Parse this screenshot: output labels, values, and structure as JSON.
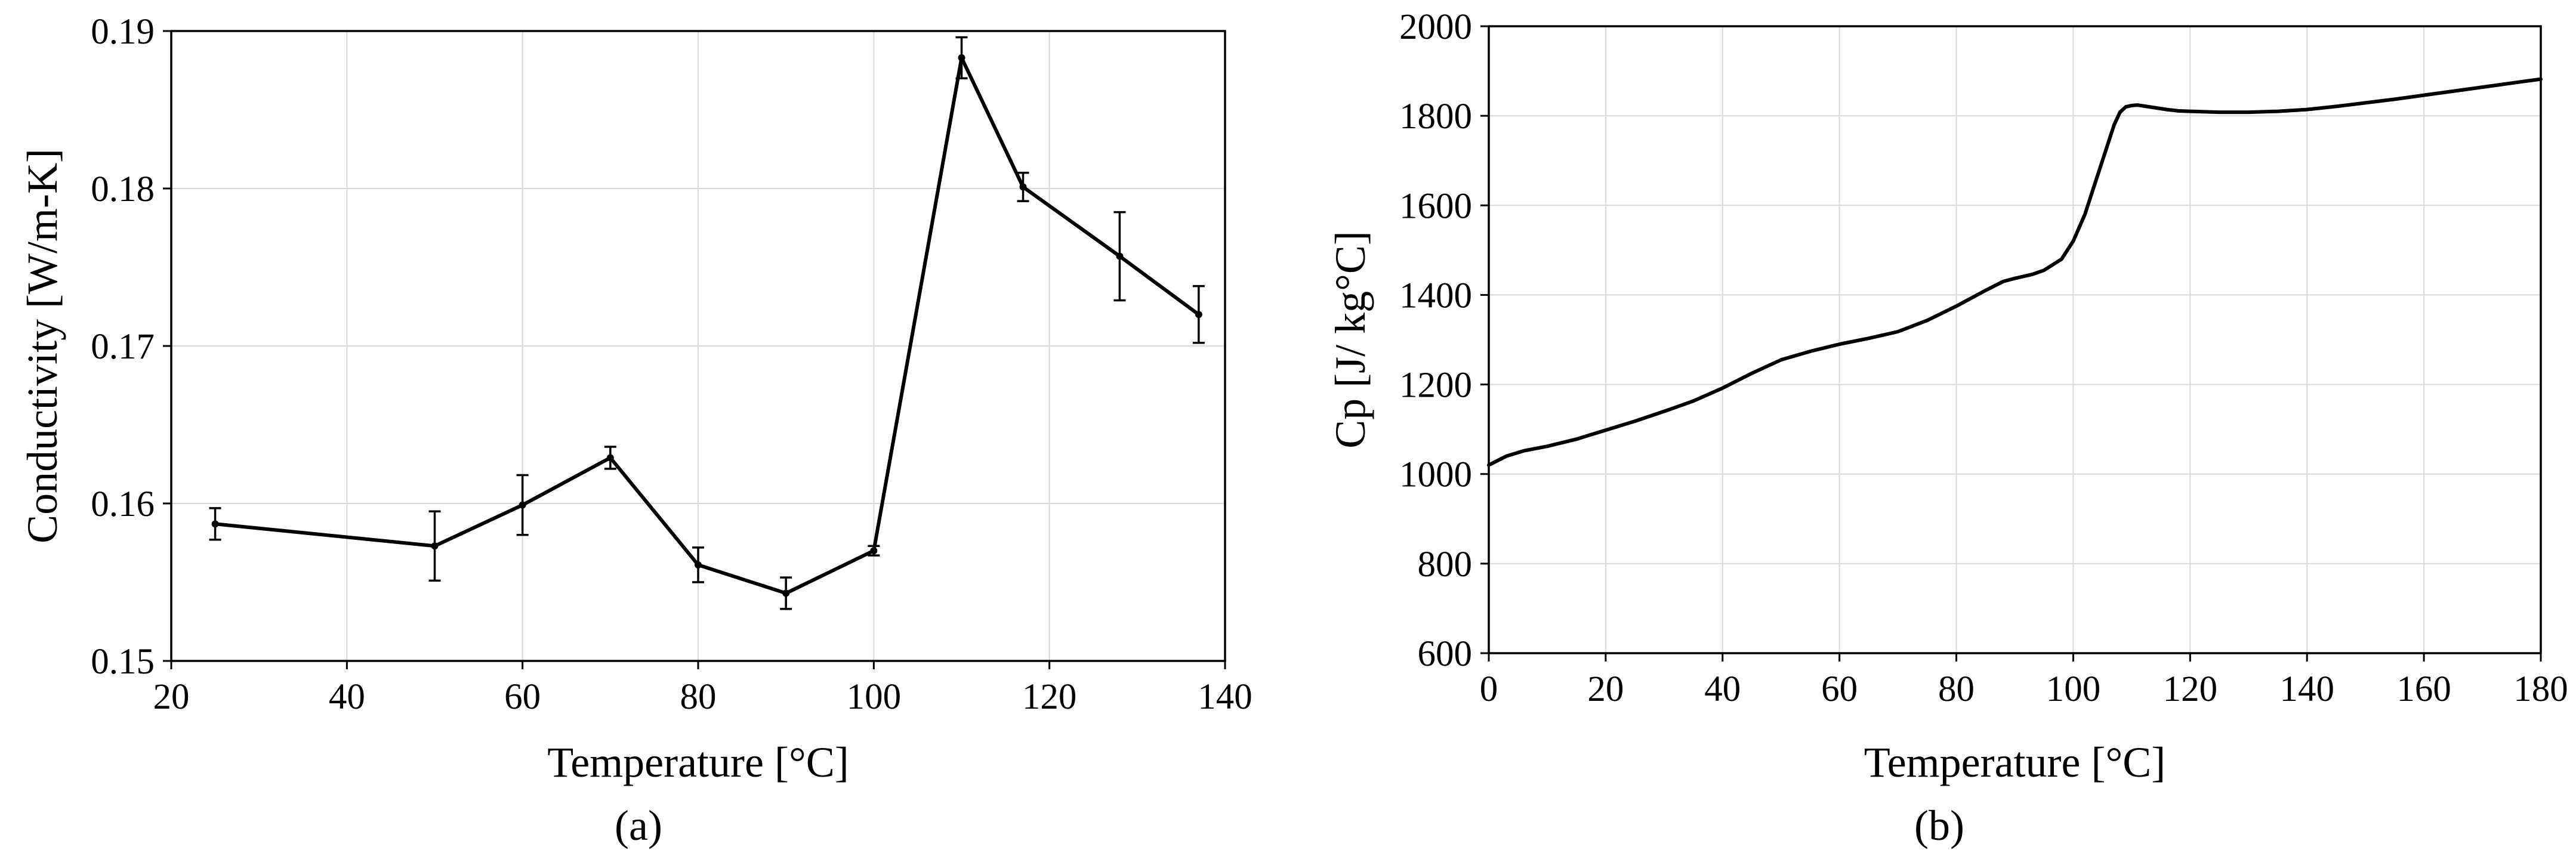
{
  "chart_data": [
    {
      "type": "line",
      "panel_label": "(a)",
      "xlabel": "Temperature [°C]",
      "ylabel": "Conductivity [W/m-K]",
      "xlim": [
        20,
        140
      ],
      "ylim": [
        0.15,
        0.19
      ],
      "x_ticks": [
        20,
        40,
        60,
        80,
        100,
        120,
        140
      ],
      "y_ticks": [
        0.15,
        0.16,
        0.17,
        0.18,
        0.19
      ],
      "x_tick_labels": [
        "20",
        "40",
        "60",
        "80",
        "100",
        "120",
        "140"
      ],
      "y_tick_labels": [
        "0.15",
        "0.16",
        "0.17",
        "0.18",
        "0.19"
      ],
      "grid": true,
      "error_bars": true,
      "x": [
        25,
        50,
        60,
        70,
        80,
        90,
        100,
        110,
        117,
        128,
        137
      ],
      "y": [
        0.1587,
        0.1573,
        0.1599,
        0.1629,
        0.1561,
        0.1543,
        0.157,
        0.1883,
        0.1801,
        0.1757,
        0.172
      ],
      "yerr": [
        0.001,
        0.0022,
        0.0019,
        0.0007,
        0.0011,
        0.001,
        0.0003,
        0.0013,
        0.0009,
        0.0028,
        0.0018
      ]
    },
    {
      "type": "line",
      "panel_label": "(b)",
      "xlabel": "Temperature [°C]",
      "ylabel": "Cp [J/ kg°C]",
      "xlim": [
        0,
        180
      ],
      "ylim": [
        600,
        2000
      ],
      "x_ticks": [
        0,
        20,
        40,
        60,
        80,
        100,
        120,
        140,
        160,
        180
      ],
      "y_ticks": [
        600,
        800,
        1000,
        1200,
        1400,
        1600,
        1800,
        2000
      ],
      "x_tick_labels": [
        "0",
        "20",
        "40",
        "60",
        "80",
        "100",
        "120",
        "140",
        "160",
        "180"
      ],
      "y_tick_labels": [
        "600",
        "800",
        "1000",
        "1200",
        "1400",
        "1600",
        "1800",
        "2000"
      ],
      "grid": true,
      "x": [
        0,
        3,
        6,
        10,
        15,
        20,
        25,
        30,
        35,
        40,
        45,
        50,
        55,
        60,
        65,
        70,
        75,
        80,
        85,
        88,
        90,
        93,
        95,
        98,
        100,
        102,
        104,
        106,
        107,
        108,
        109,
        110,
        111,
        112,
        114,
        116,
        118,
        120,
        125,
        130,
        135,
        140,
        145,
        150,
        155,
        160,
        165,
        170,
        175,
        180
      ],
      "y": [
        1020,
        1040,
        1052,
        1062,
        1078,
        1098,
        1118,
        1140,
        1163,
        1192,
        1225,
        1255,
        1274,
        1290,
        1303,
        1318,
        1343,
        1375,
        1410,
        1430,
        1437,
        1446,
        1455,
        1480,
        1520,
        1580,
        1660,
        1740,
        1780,
        1808,
        1820,
        1823,
        1824,
        1822,
        1818,
        1814,
        1811,
        1810,
        1808,
        1808,
        1810,
        1814,
        1821,
        1829,
        1837,
        1846,
        1855,
        1864,
        1873,
        1882
      ]
    }
  ]
}
